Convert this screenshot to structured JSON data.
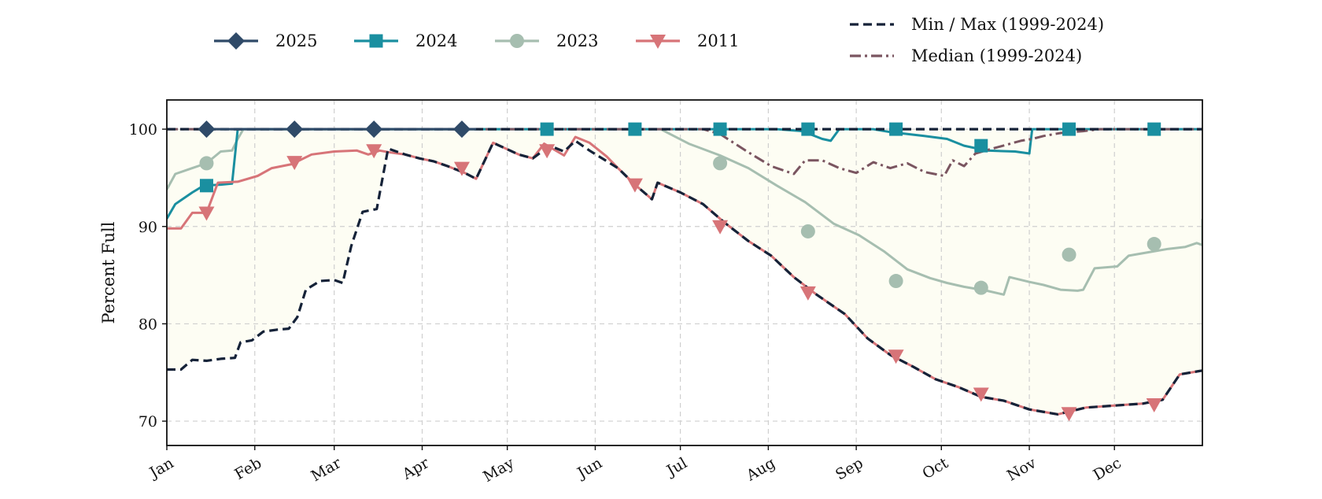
{
  "chart_data": {
    "type": "line",
    "ylabel": "Percent Full",
    "xlabel": "",
    "ylim": [
      67.5,
      103
    ],
    "y_ticks": [
      70,
      80,
      90,
      100
    ],
    "x_day_range": [
      1,
      366
    ],
    "months": [
      {
        "label": "Jan",
        "day": 1
      },
      {
        "label": "Feb",
        "day": 32
      },
      {
        "label": "Mar",
        "day": 60
      },
      {
        "label": "Apr",
        "day": 91
      },
      {
        "label": "May",
        "day": 121
      },
      {
        "label": "Jun",
        "day": 152
      },
      {
        "label": "Jul",
        "day": 182
      },
      {
        "label": "Aug",
        "day": 213
      },
      {
        "label": "Sep",
        "day": 244
      },
      {
        "label": "Oct",
        "day": 274
      },
      {
        "label": "Nov",
        "day": 305
      },
      {
        "label": "Dec",
        "day": 335
      }
    ],
    "grid": true,
    "legend_placement": "top",
    "band_fill": "#fdfdf3",
    "series": [
      {
        "name": "Min / Max (1999-2024)",
        "key": "min",
        "color": "#152238",
        "style": "dashed",
        "marker": "none",
        "points": [
          [
            1,
            75.3
          ],
          [
            6,
            75.3
          ],
          [
            10,
            76.3
          ],
          [
            15,
            76.2
          ],
          [
            20,
            76.4
          ],
          [
            25,
            76.5
          ],
          [
            27,
            78.1
          ],
          [
            31,
            78.3
          ],
          [
            35,
            79.2
          ],
          [
            40,
            79.4
          ],
          [
            44,
            79.5
          ],
          [
            47,
            80.7
          ],
          [
            50,
            83.5
          ],
          [
            55,
            84.4
          ],
          [
            60,
            84.5
          ],
          [
            63,
            84.2
          ],
          [
            66,
            88
          ],
          [
            70,
            91.5
          ],
          [
            75,
            91.8
          ],
          [
            79,
            98
          ],
          [
            85,
            97.4
          ],
          [
            90,
            97.0
          ],
          [
            95,
            96.7
          ],
          [
            100,
            96.2
          ],
          [
            106,
            95.5
          ],
          [
            110,
            94.9
          ],
          [
            116,
            98.6
          ],
          [
            125,
            97.4
          ],
          [
            130,
            97.0
          ],
          [
            136,
            98.3
          ],
          [
            141,
            97.7
          ],
          [
            145,
            98.8
          ],
          [
            150,
            97.8
          ],
          [
            160,
            96.0
          ],
          [
            166,
            94.3
          ],
          [
            172,
            92.8
          ],
          [
            174,
            94.5
          ],
          [
            182,
            93.5
          ],
          [
            190,
            92.3
          ],
          [
            198,
            90.3
          ],
          [
            206,
            88.5
          ],
          [
            214,
            87.0
          ],
          [
            222,
            84.8
          ],
          [
            230,
            83.0
          ],
          [
            240,
            81.0
          ],
          [
            248,
            78.5
          ],
          [
            256,
            76.8
          ],
          [
            264,
            75.6
          ],
          [
            272,
            74.3
          ],
          [
            280,
            73.5
          ],
          [
            288,
            72.5
          ],
          [
            296,
            72.1
          ],
          [
            305,
            71.2
          ],
          [
            315,
            70.7
          ],
          [
            325,
            71.4
          ],
          [
            335,
            71.6
          ],
          [
            345,
            71.8
          ],
          [
            352,
            72.2
          ],
          [
            358,
            74.8
          ],
          [
            366,
            75.2
          ]
        ]
      },
      {
        "name": "Max",
        "key": "max",
        "color": "#152238",
        "style": "dashed",
        "marker": "none",
        "points": [
          [
            1,
            100
          ],
          [
            366,
            100
          ]
        ]
      },
      {
        "name": "Median (1999-2024)",
        "key": "median",
        "color": "#7a5560",
        "style": "dashdot",
        "marker": "none",
        "points": [
          [
            1,
            100
          ],
          [
            190,
            100
          ],
          [
            196,
            99.5
          ],
          [
            205,
            97.8
          ],
          [
            214,
            96.2
          ],
          [
            222,
            95.4
          ],
          [
            226,
            96.8
          ],
          [
            232,
            96.8
          ],
          [
            238,
            96.0
          ],
          [
            244,
            95.5
          ],
          [
            250,
            96.6
          ],
          [
            256,
            96.0
          ],
          [
            262,
            96.5
          ],
          [
            268,
            95.6
          ],
          [
            275,
            95.2
          ],
          [
            278,
            96.8
          ],
          [
            282,
            96.2
          ],
          [
            286,
            97.5
          ],
          [
            292,
            98.0
          ],
          [
            297,
            98.4
          ],
          [
            302,
            98.8
          ],
          [
            306,
            99.0
          ],
          [
            310,
            99.3
          ],
          [
            316,
            99.6
          ],
          [
            324,
            99.8
          ],
          [
            330,
            100
          ],
          [
            366,
            100
          ]
        ]
      },
      {
        "name": "2023",
        "key": "2023",
        "color": "#a6beb0",
        "style": "solid",
        "marker": "circle",
        "points": [
          [
            1,
            93.8
          ],
          [
            4,
            95.4
          ],
          [
            10,
            96.0
          ],
          [
            15,
            96.5
          ],
          [
            20,
            97.7
          ],
          [
            24,
            97.8
          ],
          [
            26,
            99.0
          ],
          [
            28,
            100
          ],
          [
            175,
            100
          ],
          [
            185,
            98.5
          ],
          [
            196,
            97.3
          ],
          [
            206,
            96.0
          ],
          [
            216,
            94.2
          ],
          [
            226,
            92.5
          ],
          [
            236,
            90.3
          ],
          [
            245,
            89.1
          ],
          [
            254,
            87.4
          ],
          [
            262,
            85.6
          ],
          [
            270,
            84.7
          ],
          [
            276,
            84.2
          ],
          [
            282,
            83.8
          ],
          [
            290,
            83.4
          ],
          [
            296,
            83.0
          ],
          [
            298,
            84.8
          ],
          [
            305,
            84.3
          ],
          [
            310,
            84.0
          ],
          [
            316,
            83.5
          ],
          [
            322,
            83.4
          ],
          [
            324,
            83.5
          ],
          [
            328,
            85.7
          ],
          [
            336,
            85.9
          ],
          [
            340,
            87.0
          ],
          [
            348,
            87.4
          ],
          [
            354,
            87.7
          ],
          [
            360,
            87.9
          ],
          [
            364,
            88.3
          ],
          [
            370,
            88.1
          ],
          [
            374,
            88.3
          ],
          [
            378,
            88.2
          ],
          [
            384,
            88.4
          ],
          [
            386,
            88.5
          ],
          [
            390,
            90.4
          ],
          [
            393,
            90.7
          ],
          [
            396,
            90.6
          ]
        ]
      },
      {
        "name": "2024",
        "key": "2024",
        "color": "#1a8fa0",
        "style": "solid",
        "marker": "square",
        "points": [
          [
            1,
            90.8
          ],
          [
            4,
            92.3
          ],
          [
            10,
            93.5
          ],
          [
            14,
            94.2
          ],
          [
            20,
            94.3
          ],
          [
            24,
            94.4
          ],
          [
            26,
            100
          ],
          [
            206,
            100
          ],
          [
            216,
            100
          ],
          [
            225,
            99.8
          ],
          [
            232,
            99.0
          ],
          [
            235,
            98.8
          ],
          [
            238,
            100
          ],
          [
            250,
            100
          ],
          [
            256,
            99.7
          ],
          [
            262,
            99.5
          ],
          [
            268,
            99.3
          ],
          [
            276,
            99.0
          ],
          [
            282,
            98.3
          ],
          [
            290,
            97.8
          ],
          [
            300,
            97.7
          ],
          [
            305,
            97.5
          ],
          [
            306,
            100
          ],
          [
            366,
            100
          ]
        ]
      },
      {
        "name": "2011",
        "key": "2011",
        "color": "#d77478",
        "style": "solid",
        "marker": "triangle-down",
        "points": [
          [
            1,
            89.8
          ],
          [
            6,
            89.8
          ],
          [
            10,
            91.4
          ],
          [
            15,
            91.4
          ],
          [
            19,
            94.5
          ],
          [
            26,
            94.6
          ],
          [
            33,
            95.2
          ],
          [
            38,
            96.0
          ],
          [
            45,
            96.4
          ],
          [
            52,
            97.4
          ],
          [
            60,
            97.7
          ],
          [
            68,
            97.8
          ],
          [
            72,
            97.4
          ],
          [
            76,
            97.8
          ],
          [
            80,
            97.6
          ],
          [
            85,
            97.4
          ],
          [
            90,
            97.0
          ],
          [
            95,
            96.7
          ],
          [
            100,
            96.2
          ],
          [
            106,
            95.5
          ],
          [
            110,
            94.9
          ],
          [
            116,
            98.6
          ],
          [
            125,
            97.4
          ],
          [
            130,
            97.0
          ],
          [
            134,
            98.5
          ],
          [
            141,
            97.3
          ],
          [
            145,
            99.2
          ],
          [
            150,
            98.6
          ],
          [
            156,
            97.2
          ],
          [
            160,
            96.0
          ],
          [
            166,
            94.3
          ],
          [
            172,
            92.8
          ],
          [
            174,
            94.5
          ],
          [
            182,
            93.5
          ],
          [
            190,
            92.3
          ],
          [
            198,
            90.3
          ],
          [
            206,
            88.5
          ],
          [
            214,
            87.0
          ],
          [
            222,
            84.8
          ],
          [
            230,
            83.0
          ],
          [
            240,
            81.0
          ],
          [
            248,
            78.5
          ],
          [
            256,
            76.8
          ],
          [
            264,
            75.6
          ],
          [
            272,
            74.3
          ],
          [
            280,
            73.5
          ],
          [
            288,
            72.5
          ],
          [
            296,
            72.1
          ],
          [
            305,
            71.2
          ],
          [
            315,
            70.7
          ],
          [
            325,
            71.4
          ],
          [
            335,
            71.6
          ],
          [
            345,
            71.8
          ],
          [
            352,
            72.2
          ],
          [
            358,
            74.8
          ],
          [
            366,
            75.2
          ]
        ]
      },
      {
        "name": "2025",
        "key": "2025",
        "color": "#2f4a68",
        "style": "solid",
        "marker": "diamond",
        "points": [
          [
            15,
            100
          ],
          [
            110,
            100
          ]
        ]
      }
    ],
    "markers": [
      {
        "series": "2025",
        "color": "#2f4a68",
        "shape": "diamond",
        "points": [
          [
            15,
            100
          ],
          [
            46,
            100
          ],
          [
            74,
            100
          ],
          [
            105,
            100
          ]
        ]
      },
      {
        "series": "2024",
        "color": "#1a8fa0",
        "shape": "square",
        "points": [
          [
            15,
            94.2
          ],
          [
            135,
            100
          ],
          [
            166,
            100
          ],
          [
            196,
            100
          ],
          [
            227,
            100
          ],
          [
            258,
            100
          ],
          [
            288,
            98.3
          ],
          [
            319,
            100
          ],
          [
            349,
            100
          ]
        ]
      },
      {
        "series": "2023",
        "color": "#a6beb0",
        "shape": "circle",
        "points": [
          [
            15,
            96.5
          ],
          [
            196,
            96.5
          ],
          [
            227,
            89.5
          ],
          [
            258,
            84.4
          ],
          [
            288,
            83.7
          ],
          [
            319,
            87.1
          ],
          [
            349,
            88.2
          ]
        ]
      },
      {
        "series": "2011",
        "color": "#d77478",
        "shape": "triangle-down",
        "points": [
          [
            15,
            91.4
          ],
          [
            46,
            96.6
          ],
          [
            74,
            97.8
          ],
          [
            105,
            96.0
          ],
          [
            135,
            97.8
          ],
          [
            166,
            94.3
          ],
          [
            196,
            90.0
          ],
          [
            227,
            83.2
          ],
          [
            258,
            76.7
          ],
          [
            288,
            72.8
          ],
          [
            319,
            70.8
          ],
          [
            349,
            71.7
          ]
        ]
      }
    ],
    "legend": [
      {
        "label": "2025",
        "color": "#2f4a68",
        "style": "solid",
        "marker": "diamond"
      },
      {
        "label": "2024",
        "color": "#1a8fa0",
        "style": "solid",
        "marker": "square"
      },
      {
        "label": "2023",
        "color": "#a6beb0",
        "style": "solid",
        "marker": "circle"
      },
      {
        "label": "2011",
        "color": "#d77478",
        "style": "solid",
        "marker": "triangle-down"
      },
      {
        "label": "Min / Max (1999-2024)",
        "color": "#152238",
        "style": "dashed",
        "marker": "none"
      },
      {
        "label": "Median (1999-2024)",
        "color": "#7a5560",
        "style": "dashdot",
        "marker": "none"
      }
    ]
  }
}
